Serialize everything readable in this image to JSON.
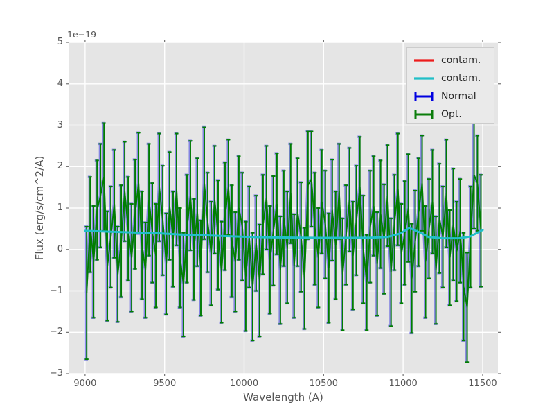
{
  "colors": {
    "figure_bg": "#ffffff",
    "axes_bg": "#e5e5e5",
    "grid": "#ffffff",
    "tick": "#555555",
    "axis_label": "#555555",
    "legend_bg": "#eaeaea",
    "legend_border": "#cccccc",
    "legend_text": "#262626"
  },
  "chart_data": {
    "type": "line+errorbar",
    "title": "",
    "xlabel": "Wavelength (A)",
    "ylabel": "Flux (erg/s/cm^2/A)",
    "offset_text": "1e−19",
    "y_scale": "1e-19",
    "xlim": [
      8896,
      11596
    ],
    "ylim": [
      -3,
      5
    ],
    "xtick_values": [
      9000,
      9500,
      10000,
      10500,
      11000,
      11500
    ],
    "xtick_labels": [
      "9000",
      "9500",
      "10000",
      "10500",
      "11000",
      "11500"
    ],
    "ytick_values": [
      -3,
      -2,
      -1,
      0,
      1,
      2,
      3,
      4,
      5
    ],
    "ytick_labels": [
      "−3",
      "−2",
      "−1",
      "0",
      "1",
      "2",
      "3",
      "4",
      "5"
    ],
    "grid": true,
    "legend": {
      "position": "upper right",
      "entries": [
        {
          "label": "contam.",
          "color": "#ed1c1c",
          "style": "line",
          "series": "contam-red"
        },
        {
          "label": "contam.",
          "color": "#21bfc7",
          "style": "line",
          "series": "contam-cyan"
        },
        {
          "label": "Normal",
          "color": "#0000e0",
          "style": "errorbar",
          "series": "Normal"
        },
        {
          "label": "Opt.",
          "color": "#0b7d0b",
          "style": "errorbar",
          "series": "Opt."
        }
      ]
    },
    "series": [
      {
        "name": "contam-red",
        "type": "line",
        "color": "#ed1c1c",
        "hidden_behind": "contam-cyan",
        "points_same_as": "contam-cyan"
      },
      {
        "name": "contam-cyan",
        "type": "line",
        "color": "#21bfc7",
        "points": [
          [
            9000,
            0.45
          ],
          [
            9150,
            0.43
          ],
          [
            9300,
            0.41
          ],
          [
            9450,
            0.39
          ],
          [
            9600,
            0.36
          ],
          [
            9750,
            0.34
          ],
          [
            9900,
            0.32
          ],
          [
            10050,
            0.3
          ],
          [
            10200,
            0.29
          ],
          [
            10350,
            0.285
          ],
          [
            10500,
            0.28
          ],
          [
            10650,
            0.28
          ],
          [
            10800,
            0.285
          ],
          [
            10900,
            0.3
          ],
          [
            10980,
            0.38
          ],
          [
            11040,
            0.52
          ],
          [
            11100,
            0.42
          ],
          [
            11160,
            0.3
          ],
          [
            11250,
            0.27
          ],
          [
            11350,
            0.27
          ],
          [
            11420,
            0.31
          ],
          [
            11500,
            0.47
          ]
        ]
      },
      {
        "name": "Normal",
        "type": "errorbar",
        "color": "#0000dd",
        "hidden_behind": "Opt.",
        "values_same_as": "Opt."
      },
      {
        "name": "Opt.",
        "type": "errorbar",
        "color": "#007e00",
        "x_start": 9010,
        "x_step": 21.75,
        "count": 115,
        "values": [
          -1.05,
          0.6,
          -0.3,
          0.95,
          1.3,
          1.75,
          -0.4,
          0.3,
          1.1,
          -0.6,
          0.2,
          1.4,
          0.5,
          -0.2,
          0.85,
          1.6,
          0.1,
          -0.5,
          1.2,
          0.4,
          -0.15,
          1.5,
          0.7,
          -0.35,
          1.05,
          0.25,
          1.45,
          -0.2,
          -0.85,
          0.5,
          1.3,
          0.0,
          0.9,
          -0.45,
          1.6,
          0.65,
          -0.1,
          1.2,
          0.35,
          -0.55,
          0.8,
          1.5,
          0.2,
          -0.3,
          1.0,
          0.55,
          -0.65,
          0.3,
          -0.9,
          0.15,
          -0.75,
          0.6,
          1.25,
          -0.25,
          0.45,
          1.1,
          -0.5,
          0.75,
          0.05,
          1.35,
          -0.4,
          0.9,
          0.3,
          -0.7,
          1.55,
          1.7,
          0.5,
          -0.2,
          1.15,
          0.6,
          -0.45,
          0.95,
          0.1,
          1.4,
          -0.6,
          0.35,
          1.2,
          -0.15,
          0.7,
          1.5,
          0.0,
          -0.8,
          0.55,
          1.05,
          -0.35,
          0.85,
          0.25,
          1.3,
          -0.55,
          0.65,
          1.45,
          -0.1,
          0.4,
          1.0,
          -0.7,
          0.2,
          0.9,
          1.6,
          -0.3,
          0.5,
          1.15,
          -0.5,
          0.75,
          0.3,
          1.35,
          -0.2,
          0.6,
          -0.05,
          0.45,
          -0.9,
          -1.4,
          0.3,
          1.8,
          1.6,
          0.45
        ],
        "yerr_first": 1.6,
        "yerr_cycle": [
          1.3,
          1.15,
          1.35,
          1.2,
          1.25,
          1.3,
          1.32,
          1.22
        ]
      }
    ]
  }
}
